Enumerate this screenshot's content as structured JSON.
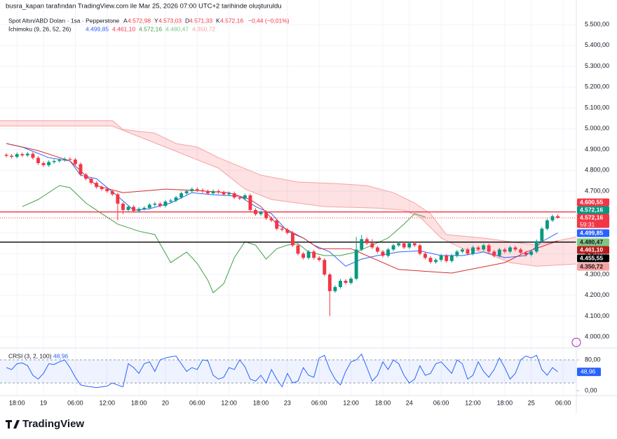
{
  "header": {
    "credit": "busra_kapan tarafından TradingView.com ile Mar 25, 2026 07:00 UTC+2 tarihinde oluşturuldu"
  },
  "footer": {
    "logo": "TradingView"
  },
  "chart_data": [
    {
      "type": "candlestick",
      "title": "Spot Altın/ABD Doları · 1sa · Pepperstone",
      "ohlc_legend": [
        {
          "label": "A",
          "value": "4.572,98"
        },
        {
          "label": "Y",
          "value": "4.573,03"
        },
        {
          "label": "D",
          "value": "4.571,33"
        },
        {
          "label": "K",
          "value": "4.572,16"
        }
      ],
      "change": "−0,44 (−0,01%)",
      "indicator": {
        "title": "İchimoku (9, 26, 52, 26)",
        "values": [
          {
            "text": "4.499,85",
            "color": "#2962ff"
          },
          {
            "text": "4.461,10",
            "color": "#f23645"
          },
          {
            "text": "4.572,16",
            "color": "#43a047"
          },
          {
            "text": "4.480,47",
            "color": "#81c784"
          },
          {
            "text": "4.350,72",
            "color": "#f7a3a0"
          }
        ]
      },
      "xlim": [
        -1.2,
        107.5
      ],
      "xticks": [
        {
          "value": 2,
          "label": "18:00"
        },
        {
          "value": 7,
          "label": "19"
        },
        {
          "value": 13,
          "label": "06:00"
        },
        {
          "value": 19,
          "label": "12:00"
        },
        {
          "value": 25,
          "label": "18:00"
        },
        {
          "value": 30,
          "label": "20"
        },
        {
          "value": 36,
          "label": "06:00"
        },
        {
          "value": 42,
          "label": "12:00"
        },
        {
          "value": 48,
          "label": "18:00"
        },
        {
          "value": 53,
          "label": "23"
        },
        {
          "value": 59,
          "label": "06:00"
        },
        {
          "value": 65,
          "label": "12:00"
        },
        {
          "value": 71,
          "label": "18:00"
        },
        {
          "value": 76,
          "label": "24"
        },
        {
          "value": 82,
          "label": "06:00"
        },
        {
          "value": 88,
          "label": "12:00"
        },
        {
          "value": 94,
          "label": "18:00"
        },
        {
          "value": 99,
          "label": "25"
        },
        {
          "value": 105,
          "label": "06:00"
        }
      ],
      "ylim": [
        3954,
        5618
      ],
      "yticks": [
        {
          "value": 4000,
          "label": "4.000,00"
        },
        {
          "value": 4100,
          "label": "4.100,00"
        },
        {
          "value": 4200,
          "label": "4.200,00"
        },
        {
          "value": 4300,
          "label": "4.300,00"
        },
        {
          "value": 4400,
          "label": "4.400,00"
        },
        {
          "value": 4500,
          "label": "4.500,00"
        },
        {
          "value": 4600,
          "label": "4.600,00"
        },
        {
          "value": 4700,
          "label": "4.700,00"
        },
        {
          "value": 4800,
          "label": "4.800,00"
        },
        {
          "value": 4900,
          "label": "4.900,00"
        },
        {
          "value": 5000,
          "label": "5.000,00"
        },
        {
          "value": 5100,
          "label": "5.100,00"
        },
        {
          "value": 5200,
          "label": "5.200,00"
        },
        {
          "value": 5300,
          "label": "5.300,00"
        },
        {
          "value": 5400,
          "label": "5.400,00"
        },
        {
          "value": 5500,
          "label": "5.500,00"
        }
      ],
      "up_color": "#089981",
      "down_color": "#f23645",
      "open": [
        4875,
        4870,
        4865,
        4878,
        4872,
        4880,
        4860,
        4835,
        4825,
        4840,
        4845,
        4850,
        4855,
        4852,
        4830,
        4780,
        4760,
        4740,
        4720,
        4710,
        4700,
        4685,
        4640,
        4610,
        4625,
        4605,
        4615,
        4620,
        4635,
        4640,
        4630,
        4650,
        4655,
        4670,
        4690,
        4700,
        4710,
        4705,
        4700,
        4690,
        4700,
        4695,
        4685,
        4690,
        4670,
        4665,
        4680,
        4610,
        4590,
        4600,
        4570,
        4560,
        4520,
        4515,
        4500,
        4440,
        4400,
        4380,
        4410,
        4380,
        4370,
        4300,
        4220,
        4240,
        4270,
        4260,
        4280,
        4420,
        4470,
        4450,
        4430,
        4410,
        4390,
        4420,
        4440,
        4450,
        4430,
        4450,
        4440,
        4400,
        4380,
        4360,
        4370,
        4390,
        4365,
        4390,
        4410,
        4420,
        4400,
        4430,
        4420,
        4440,
        4410,
        4390,
        4420,
        4410,
        4430,
        4420,
        4405,
        4395,
        4410,
        4460,
        4520,
        4560,
        4580
      ],
      "high": [
        4883,
        4878,
        4886,
        4886,
        4888,
        4888,
        4868,
        4843,
        4848,
        4853,
        4858,
        4863,
        4863,
        4860,
        4838,
        4788,
        4768,
        4748,
        4728,
        4718,
        4708,
        4693,
        4648,
        4633,
        4633,
        4623,
        4628,
        4643,
        4648,
        4648,
        4658,
        4663,
        4678,
        4698,
        4708,
        4718,
        4718,
        4713,
        4708,
        4708,
        4708,
        4703,
        4698,
        4698,
        4678,
        4688,
        4688,
        4618,
        4608,
        4608,
        4578,
        4568,
        4528,
        4523,
        4508,
        4448,
        4408,
        4418,
        4418,
        4388,
        4378,
        4308,
        4248,
        4278,
        4278,
        4288,
        4480,
        4490,
        4478,
        4470,
        4438,
        4418,
        4428,
        4448,
        4458,
        4458,
        4458,
        4458,
        4448,
        4408,
        4388,
        4378,
        4398,
        4398,
        4398,
        4418,
        4428,
        4428,
        4438,
        4438,
        4448,
        4448,
        4418,
        4428,
        4428,
        4438,
        4438,
        4428,
        4413,
        4418,
        4468,
        4528,
        4568,
        4588,
        4588
      ],
      "low": [
        4862,
        4857,
        4857,
        4864,
        4864,
        4852,
        4827,
        4817,
        4817,
        4832,
        4837,
        4842,
        4844,
        4822,
        4772,
        4752,
        4732,
        4712,
        4702,
        4692,
        4677,
        4560,
        4590,
        4602,
        4597,
        4597,
        4607,
        4612,
        4627,
        4622,
        4622,
        4642,
        4647,
        4662,
        4682,
        4692,
        4697,
        4692,
        4682,
        4682,
        4687,
        4677,
        4677,
        4662,
        4657,
        4657,
        4602,
        4582,
        4582,
        4562,
        4552,
        4512,
        4507,
        4492,
        4432,
        4392,
        4372,
        4372,
        4372,
        4362,
        4292,
        4100,
        4212,
        4232,
        4252,
        4252,
        4272,
        4412,
        4442,
        4422,
        4402,
        4382,
        4382,
        4412,
        4432,
        4422,
        4422,
        4432,
        4392,
        4372,
        4352,
        4352,
        4362,
        4357,
        4357,
        4382,
        4402,
        4392,
        4392,
        4412,
        4412,
        4402,
        4382,
        4382,
        4402,
        4402,
        4412,
        4397,
        4387,
        4387,
        4402,
        4452,
        4512,
        4552,
        4568
      ],
      "close": [
        4870,
        4865,
        4878,
        4872,
        4880,
        4860,
        4835,
        4825,
        4840,
        4845,
        4850,
        4855,
        4852,
        4830,
        4780,
        4760,
        4740,
        4720,
        4710,
        4700,
        4685,
        4640,
        4610,
        4625,
        4605,
        4615,
        4620,
        4635,
        4640,
        4630,
        4650,
        4655,
        4670,
        4690,
        4700,
        4710,
        4705,
        4700,
        4690,
        4700,
        4695,
        4685,
        4690,
        4670,
        4665,
        4680,
        4610,
        4590,
        4600,
        4570,
        4560,
        4520,
        4515,
        4500,
        4440,
        4400,
        4380,
        4410,
        4380,
        4370,
        4300,
        4220,
        4240,
        4270,
        4260,
        4280,
        4420,
        4470,
        4450,
        4430,
        4410,
        4390,
        4420,
        4440,
        4450,
        4430,
        4450,
        4440,
        4400,
        4380,
        4360,
        4370,
        4390,
        4365,
        4390,
        4410,
        4420,
        4400,
        4430,
        4420,
        4440,
        4410,
        4390,
        4420,
        4410,
        4430,
        4420,
        4405,
        4395,
        4410,
        4460,
        4520,
        4560,
        4580,
        4572.16
      ],
      "cloud_color": "#f23645",
      "series": [
        {
          "color": "#f7a3a0",
          "x": [
            -1.2,
            20,
            22,
            28,
            32,
            36,
            40,
            48,
            55,
            62,
            68,
            73,
            77,
            80,
            83,
            90,
            95,
            100,
            107.5
          ],
          "values": [
            5039,
            5039,
            4996,
            4979,
            4929,
            4912,
            4861,
            4777,
            4744,
            4737,
            4727,
            4693,
            4643,
            4592,
            4492,
            4475,
            4458,
            4441,
            4480.47
          ]
        },
        {
          "color": "#f7a3a0",
          "x": [
            -1.2,
            20,
            25,
            30,
            35,
            40,
            45,
            50,
            55,
            60,
            70,
            75,
            78,
            82,
            86,
            90,
            95,
            100,
            107.5
          ],
          "values": [
            5013,
            5013,
            4962,
            4912,
            4861,
            4811,
            4710,
            4660,
            4643,
            4626,
            4619,
            4609,
            4576,
            4475,
            4424,
            4408,
            4357,
            4340,
            4350.72
          ]
        },
        {
          "color": "#2962ff",
          "x": [
            0,
            3,
            8,
            12,
            14,
            17,
            21,
            24,
            27,
            31,
            35,
            39,
            44,
            47,
            50,
            53,
            56,
            58,
            61,
            64,
            67,
            70,
            74,
            78,
            82,
            86,
            90,
            94,
            98,
            101,
            104
          ],
          "values": [
            4929,
            4912,
            4861,
            4845,
            4777,
            4760,
            4676,
            4609,
            4616,
            4643,
            4693,
            4683,
            4676,
            4626,
            4592,
            4508,
            4475,
            4441,
            4408,
            4340,
            4374,
            4391,
            4408,
            4414,
            4391,
            4391,
            4408,
            4381,
            4391,
            4458,
            4499.85
          ]
        },
        {
          "color": "#d32f2f",
          "x": [
            0,
            6,
            12,
            17,
            22,
            30,
            36,
            42,
            46,
            48,
            51,
            56,
            59,
            65,
            74,
            84,
            94,
            98,
            104
          ],
          "values": [
            4929,
            4895,
            4845,
            4727,
            4693,
            4710,
            4703,
            4693,
            4660,
            4626,
            4542,
            4475,
            4424,
            4424,
            4324,
            4307,
            4357,
            4408,
            4461.1
          ]
        },
        {
          "color": "#43a047",
          "x": [
            3,
            6,
            10,
            12,
            15,
            18,
            21,
            25,
            28,
            31,
            34,
            36,
            38,
            39,
            41,
            43,
            45,
            47,
            49,
            51,
            53,
            55,
            57,
            60,
            63,
            66,
            69,
            72,
            75,
            77,
            79
          ],
          "values": [
            4626,
            4660,
            4727,
            4717,
            4643,
            4592,
            4542,
            4508,
            4492,
            4357,
            4408,
            4353,
            4273,
            4213,
            4256,
            4381,
            4458,
            4441,
            4374,
            4424,
            4441,
            4448,
            4408,
            4391,
            4391,
            4408,
            4441,
            4475,
            4542,
            4592,
            4576
          ]
        }
      ],
      "hlines": [
        {
          "value": 4600.55,
          "color": "#f23645"
        },
        {
          "value": 4455.55,
          "color": "#000000"
        }
      ],
      "price_labels": [
        {
          "text": "4.600,55",
          "color": "#f23645"
        },
        {
          "text": "4.572,16",
          "color": "#089981"
        },
        {
          "text": "4.572,16",
          "color": "#f23645",
          "sub": "59:31"
        },
        {
          "text": "4.499,85",
          "color": "#2962ff"
        },
        {
          "text": "4.480,47",
          "color": "#81c784"
        },
        {
          "text": "4.461,10",
          "color": "#b71c1c"
        },
        {
          "text": "4.455,55",
          "color": "#000000"
        },
        {
          "text": "4.350,72",
          "color": "#f7a3a0"
        }
      ]
    },
    {
      "type": "line",
      "title": "CRSI (3, 2, 100)",
      "legend_value": "48,96",
      "color": "#2962ff",
      "values": [
        60,
        55,
        70,
        72,
        65,
        40,
        30,
        45,
        70,
        68,
        75,
        80,
        60,
        35,
        15,
        12,
        10,
        8,
        10,
        12,
        20,
        15,
        10,
        70,
        60,
        45,
        70,
        75,
        50,
        80,
        85,
        88,
        90,
        70,
        50,
        60,
        55,
        80,
        78,
        40,
        30,
        35,
        60,
        55,
        80,
        62,
        30,
        25,
        40,
        20,
        55,
        30,
        10,
        45,
        20,
        25,
        60,
        40,
        35,
        85,
        92,
        55,
        30,
        15,
        50,
        75,
        80,
        95,
        60,
        25,
        40,
        75,
        55,
        80,
        70,
        40,
        20,
        30,
        65,
        40,
        45,
        70,
        75,
        60,
        45,
        80,
        70,
        30,
        40,
        75,
        50,
        35,
        55,
        85,
        60,
        30,
        45,
        80,
        90,
        85,
        92,
        55,
        40,
        60,
        48.96
      ],
      "ylim": [
        -12.7,
        105.5
      ],
      "yticks": [
        {
          "value": 80,
          "label": "80,00"
        },
        {
          "value": 0,
          "label": "0,00"
        }
      ],
      "band": [
        20,
        80
      ]
    }
  ]
}
